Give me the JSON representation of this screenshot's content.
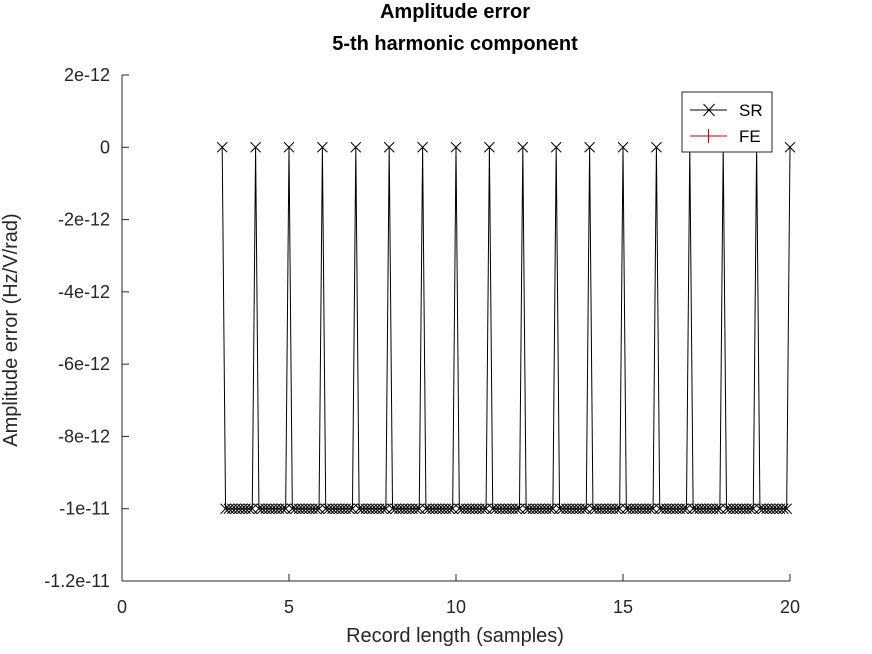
{
  "chart_data": {
    "type": "line",
    "title": "Amplitude error",
    "subtitle": "5-th harmonic component",
    "xlabel": "Record length (samples)",
    "ylabel": "Amplitude error (Hz/V/rad)",
    "xlim": [
      0,
      20
    ],
    "ylim": [
      -1.2e-11,
      2e-12
    ],
    "x_ticks": [
      0,
      5,
      10,
      15,
      20
    ],
    "x_tick_labels": [
      "0",
      "5",
      "10",
      "15",
      "20"
    ],
    "y_ticks": [
      2e-12,
      0,
      -2e-12,
      -4e-12,
      -6e-12,
      -8e-12,
      -1e-11,
      -1.2e-11
    ],
    "y_tick_labels": [
      "2e-12",
      "0",
      "-2e-12",
      "-4e-12",
      "-6e-12",
      "-8e-12",
      "-1e-11",
      "-1.2e-11"
    ],
    "grid": false,
    "legend_position": "top-right",
    "series": [
      {
        "name": "SR",
        "color": "#000000",
        "marker": "x",
        "description_values": "At each integer record length from 3 to 20 the error is 0; between integers it sits near -1e-11.",
        "integer_x": [
          3,
          4,
          5,
          6,
          7,
          8,
          9,
          10,
          11,
          12,
          13,
          14,
          15,
          16,
          17,
          18,
          19,
          20
        ],
        "integer_y": 0,
        "between_y": -1e-11,
        "between_points_per_interval": 9
      },
      {
        "name": "FE",
        "color": "#cc0000",
        "marker": "+",
        "x": [],
        "y": []
      }
    ]
  }
}
